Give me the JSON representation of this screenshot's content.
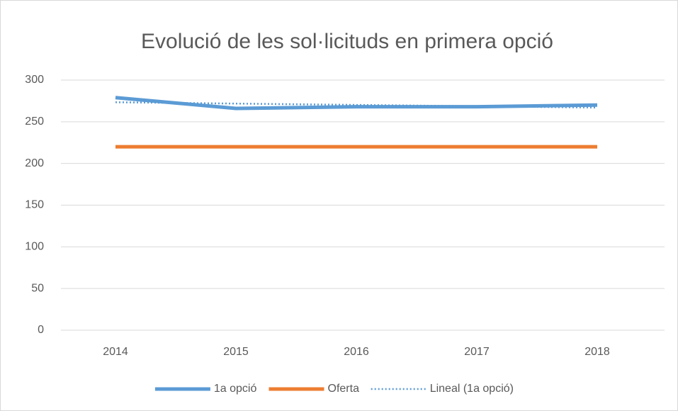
{
  "chart_data": {
    "type": "line",
    "title": "Evolució de les sol·licituds en primera opció",
    "categories": [
      "2014",
      "2015",
      "2016",
      "2017",
      "2018"
    ],
    "series": [
      {
        "name": "1a opció",
        "color": "#5b9bd5",
        "style": "solid",
        "values": [
          279,
          266,
          268,
          268,
          270
        ]
      },
      {
        "name": "Oferta",
        "color": "#ed7d31",
        "style": "solid",
        "values": [
          220,
          220,
          220,
          220,
          220
        ]
      },
      {
        "name": "Lineal (1a opció)",
        "color": "#5b9bd5",
        "style": "dotted",
        "values": [
          273.4,
          271.8,
          270.2,
          268.6,
          267
        ]
      }
    ],
    "ylim": [
      0,
      300
    ],
    "yticks": [
      0,
      50,
      100,
      150,
      200,
      250,
      300
    ],
    "grid": true,
    "legend": "bottom"
  }
}
